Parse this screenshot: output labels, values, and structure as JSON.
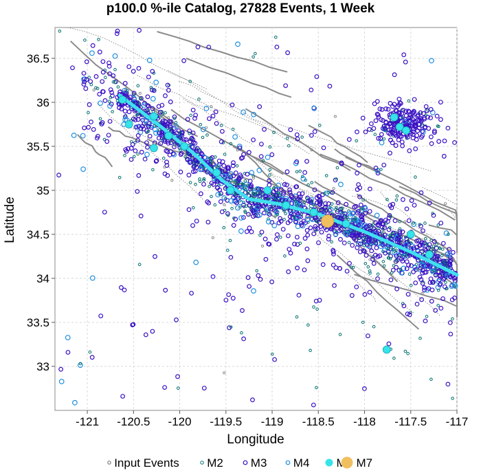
{
  "chart_data": {
    "type": "scatter",
    "title": "p100.0 %-ile Catalog, 27828 Events, 1 Week",
    "xlabel": "Longitude",
    "ylabel": "Latitude",
    "xlim": [
      -121.35,
      -117.0
    ],
    "ylim": [
      32.5,
      36.85
    ],
    "x_ticks": [
      -121,
      -120.5,
      -120,
      -119.5,
      -119,
      -118.5,
      -118,
      -117.5,
      -117
    ],
    "x_tick_labels": [
      "-121",
      "-120.5",
      "-120",
      "-119.5",
      "-119",
      "-118.5",
      "-118",
      "-117.5",
      "-117"
    ],
    "y_ticks": [
      33,
      33.5,
      34,
      34.5,
      35,
      35.5,
      36,
      36.5
    ],
    "y_tick_labels": [
      "33",
      "33.5",
      "34",
      "34.5",
      "35",
      "35.5",
      "36",
      "36.5"
    ],
    "grid": true,
    "legend_position": "bottom",
    "legend": [
      {
        "label": "Input Events",
        "marker": "open-circle",
        "color": "#666666",
        "size": "small"
      },
      {
        "label": "M2",
        "marker": "open-circle",
        "color": "#006d6d",
        "size": "small"
      },
      {
        "label": "M3",
        "marker": "open-circle",
        "color": "#3a10c4",
        "size": "medium"
      },
      {
        "label": "M4",
        "marker": "open-circle",
        "color": "#1f8fe0",
        "size": "medium"
      },
      {
        "label": "M5",
        "marker": "filled-circle",
        "color": "#35e3ea",
        "size": "large"
      },
      {
        "label": "M7",
        "marker": "filled-circle",
        "color": "#f0c060",
        "size": "xlarge"
      }
    ],
    "rupture_trace": {
      "color": "#40e0f0",
      "points": [
        [
          -120.65,
          36.08
        ],
        [
          -120.2,
          35.72
        ],
        [
          -119.85,
          35.42
        ],
        [
          -119.55,
          35.12
        ],
        [
          -119.25,
          34.9
        ],
        [
          -118.95,
          34.85
        ],
        [
          -118.5,
          34.73
        ],
        [
          -118.0,
          34.53
        ],
        [
          -117.5,
          34.3
        ],
        [
          -117.0,
          34.04
        ]
      ]
    },
    "clusters": [
      {
        "center": [
          -117.6,
          35.75
        ],
        "spread": [
          0.18,
          0.12
        ],
        "count": 220,
        "series": "M3"
      }
    ],
    "m5_events": [
      [
        -120.62,
        36.03
      ],
      [
        -120.55,
        35.75
      ],
      [
        -120.28,
        35.84
      ],
      [
        -120.12,
        35.62
      ],
      [
        -119.95,
        35.5
      ],
      [
        -119.6,
        35.2
      ],
      [
        -119.45,
        35.0
      ],
      [
        -119.05,
        35.0
      ],
      [
        -118.85,
        34.83
      ],
      [
        -118.55,
        34.75
      ],
      [
        -117.68,
        35.83
      ],
      [
        -117.62,
        35.72
      ],
      [
        -117.55,
        35.68
      ],
      [
        -117.3,
        34.27
      ],
      [
        -117.76,
        33.19
      ],
      [
        -117.5,
        34.5
      ],
      [
        -118.2,
        34.62
      ],
      [
        -120.28,
        35.48
      ]
    ],
    "m7_events": [
      [
        -118.4,
        34.65
      ]
    ]
  }
}
